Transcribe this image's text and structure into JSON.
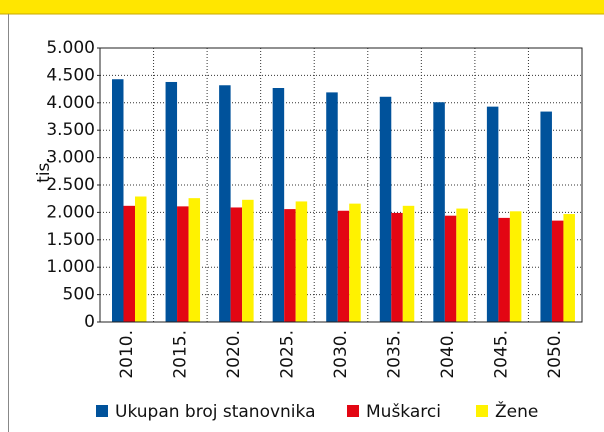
{
  "chart_data": {
    "type": "bar",
    "y_label": "tis.",
    "categories": [
      "2010.",
      "2015.",
      "2020.",
      "2025.",
      "2030.",
      "2035.",
      "2040.",
      "2045.",
      "2050."
    ],
    "series": [
      {
        "name": "Ukupan broj stanovnika",
        "color": "#00529b",
        "values": [
          4430,
          4380,
          4320,
          4270,
          4190,
          4110,
          4010,
          3930,
          3840
        ]
      },
      {
        "name": "Muškarci",
        "color": "#e30613",
        "values": [
          2120,
          2110,
          2090,
          2060,
          2030,
          1990,
          1940,
          1900,
          1850
        ]
      },
      {
        "name": "Žene",
        "color": "#fff200",
        "values": [
          2290,
          2260,
          2230,
          2200,
          2160,
          2120,
          2070,
          2020,
          1970
        ]
      }
    ],
    "ylim": [
      0,
      5000
    ],
    "yticks": [
      0,
      500,
      {
        "value": 1000,
        "label": "1.000"
      },
      {
        "value": 1500,
        "label": "1.500"
      },
      {
        "value": 2000,
        "label": "2.000"
      },
      {
        "value": 2500,
        "label": "2.500"
      },
      {
        "value": 3000,
        "label": "3.000"
      },
      {
        "value": 3500,
        "label": "3.500"
      },
      {
        "value": 4000,
        "label": "4.000"
      },
      {
        "value": 4500,
        "label": "4.500"
      },
      {
        "value": 5000,
        "label": "5.000"
      }
    ],
    "grid": true,
    "legend": "bottom"
  }
}
